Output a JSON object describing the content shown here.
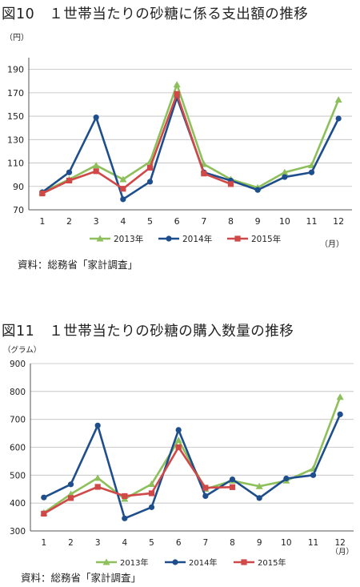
{
  "charts": [
    {
      "title": "図10　１世帯当たりの砂糖に係る支出額の推移",
      "source": "資料：総務省「家計調査」"
    },
    {
      "title": "図11　１世帯当たりの砂糖の購入数量の推移",
      "source": "資料：総務省「家計調査」"
    }
  ],
  "colors": {
    "2013年": "#8dbf5a",
    "2014年": "#1f4e8c",
    "2015年": "#d04848"
  },
  "chart_data": [
    {
      "type": "line",
      "title": "",
      "ylabel": "（円）",
      "xlabel": "（月）",
      "categories": [
        "1",
        "2",
        "3",
        "4",
        "5",
        "6",
        "7",
        "8",
        "9",
        "10",
        "11",
        "12"
      ],
      "ylim": [
        70,
        200
      ],
      "yticks": [
        70,
        90,
        110,
        130,
        150,
        170,
        190
      ],
      "grid": true,
      "legend": "bottom",
      "series": [
        {
          "name": "2013年",
          "marker": "triangle",
          "values": [
            85,
            96,
            108,
            96,
            111,
            177,
            109,
            96,
            89,
            102,
            108,
            164
          ]
        },
        {
          "name": "2014年",
          "marker": "circle",
          "values": [
            85,
            102,
            149,
            79,
            94,
            166,
            102,
            95,
            87,
            98,
            102,
            148
          ]
        },
        {
          "name": "2015年",
          "marker": "square",
          "values": [
            84,
            95,
            103,
            88,
            106,
            169,
            101,
            92,
            null,
            null,
            null,
            null
          ]
        }
      ]
    },
    {
      "type": "line",
      "title": "",
      "ylabel": "（グラム）",
      "xlabel": "（月）",
      "categories": [
        "1",
        "2",
        "3",
        "4",
        "5",
        "6",
        "7",
        "8",
        "9",
        "10",
        "11",
        "12"
      ],
      "ylim": [
        300,
        900
      ],
      "yticks": [
        300,
        400,
        500,
        600,
        700,
        800,
        900
      ],
      "grid": true,
      "legend": "bottom",
      "series": [
        {
          "name": "2013年",
          "marker": "triangle",
          "values": [
            365,
            432,
            490,
            415,
            468,
            625,
            450,
            480,
            460,
            480,
            523,
            780
          ]
        },
        {
          "name": "2014年",
          "marker": "circle",
          "values": [
            420,
            467,
            678,
            345,
            385,
            662,
            425,
            485,
            418,
            488,
            500,
            718
          ]
        },
        {
          "name": "2015年",
          "marker": "square",
          "values": [
            362,
            418,
            458,
            425,
            435,
            600,
            455,
            457,
            null,
            null,
            null,
            null
          ]
        }
      ]
    }
  ]
}
